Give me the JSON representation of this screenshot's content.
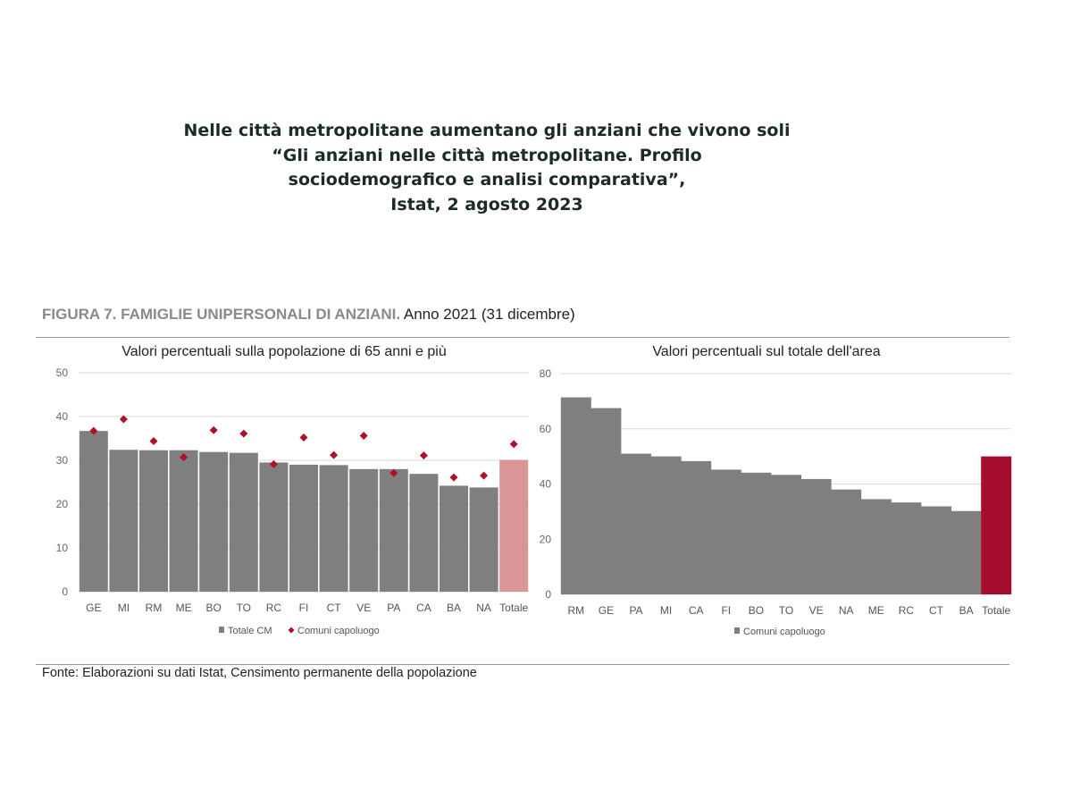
{
  "headline": [
    "Nelle città metropolitane aumentano gli anziani che vivono soli",
    "“Gli anziani nelle città metropolitane. Profilo",
    "sociodemografico e analisi comparativa”,",
    "Istat, 2 agosto 2023"
  ],
  "figure": {
    "title_bold": "FIGURA 7. FAMIGLIE UNIPERSONALI DI ANZIANI.",
    "title_rest": " Anno 2021 (31 dicembre)",
    "source": "Fonte: Elaborazioni su dati Istat, Censimento permanente della popolazione"
  },
  "chart_data": [
    {
      "type": "bar",
      "title": "Valori percentuali sulla popolazione di 65 anni e più",
      "categories": [
        "GE",
        "MI",
        "RM",
        "ME",
        "BO",
        "TO",
        "RC",
        "FI",
        "CT",
        "VE",
        "PA",
        "CA",
        "BA",
        "NA",
        "Totale"
      ],
      "series": [
        {
          "name": "Totale CM",
          "type": "bar",
          "color": "#7f7f7f",
          "highlight_color": "#d99694",
          "values": [
            36.7,
            32.4,
            32.3,
            32.3,
            31.9,
            31.7,
            29.5,
            29.0,
            28.9,
            28.0,
            28.0,
            26.9,
            24.2,
            23.8,
            30.1
          ]
        },
        {
          "name": "Comuni capoluogo",
          "type": "scatter",
          "marker": "diamond",
          "color": "#b0102a",
          "values": [
            36.7,
            39.4,
            34.4,
            30.7,
            36.9,
            36.1,
            29.1,
            35.2,
            31.2,
            35.6,
            27.1,
            31.1,
            26.1,
            26.5,
            33.7
          ]
        }
      ],
      "yticks": [
        0,
        10,
        20,
        30,
        40,
        50
      ],
      "ylim": [
        0,
        50
      ],
      "grid": true,
      "legend": "bottom"
    },
    {
      "type": "bar",
      "title": "Valori percentuali sul totale dell'area",
      "categories": [
        "RM",
        "GE",
        "PA",
        "MI",
        "CA",
        "FI",
        "BO",
        "TO",
        "VE",
        "NA",
        "ME",
        "RC",
        "CT",
        "BA",
        "Totale"
      ],
      "series": [
        {
          "name": "Comuni capoluogo",
          "color": "#7f7f7f",
          "highlight_color": "#a50f2d",
          "values": [
            71.4,
            67.5,
            51.0,
            50.0,
            48.3,
            45.2,
            44.1,
            43.3,
            41.8,
            38.0,
            34.5,
            33.3,
            31.9,
            30.2,
            50.0
          ]
        }
      ],
      "yticks": [
        0,
        20,
        40,
        60,
        80
      ],
      "ylim": [
        0,
        80
      ],
      "grid": true,
      "legend": "bottom"
    }
  ]
}
